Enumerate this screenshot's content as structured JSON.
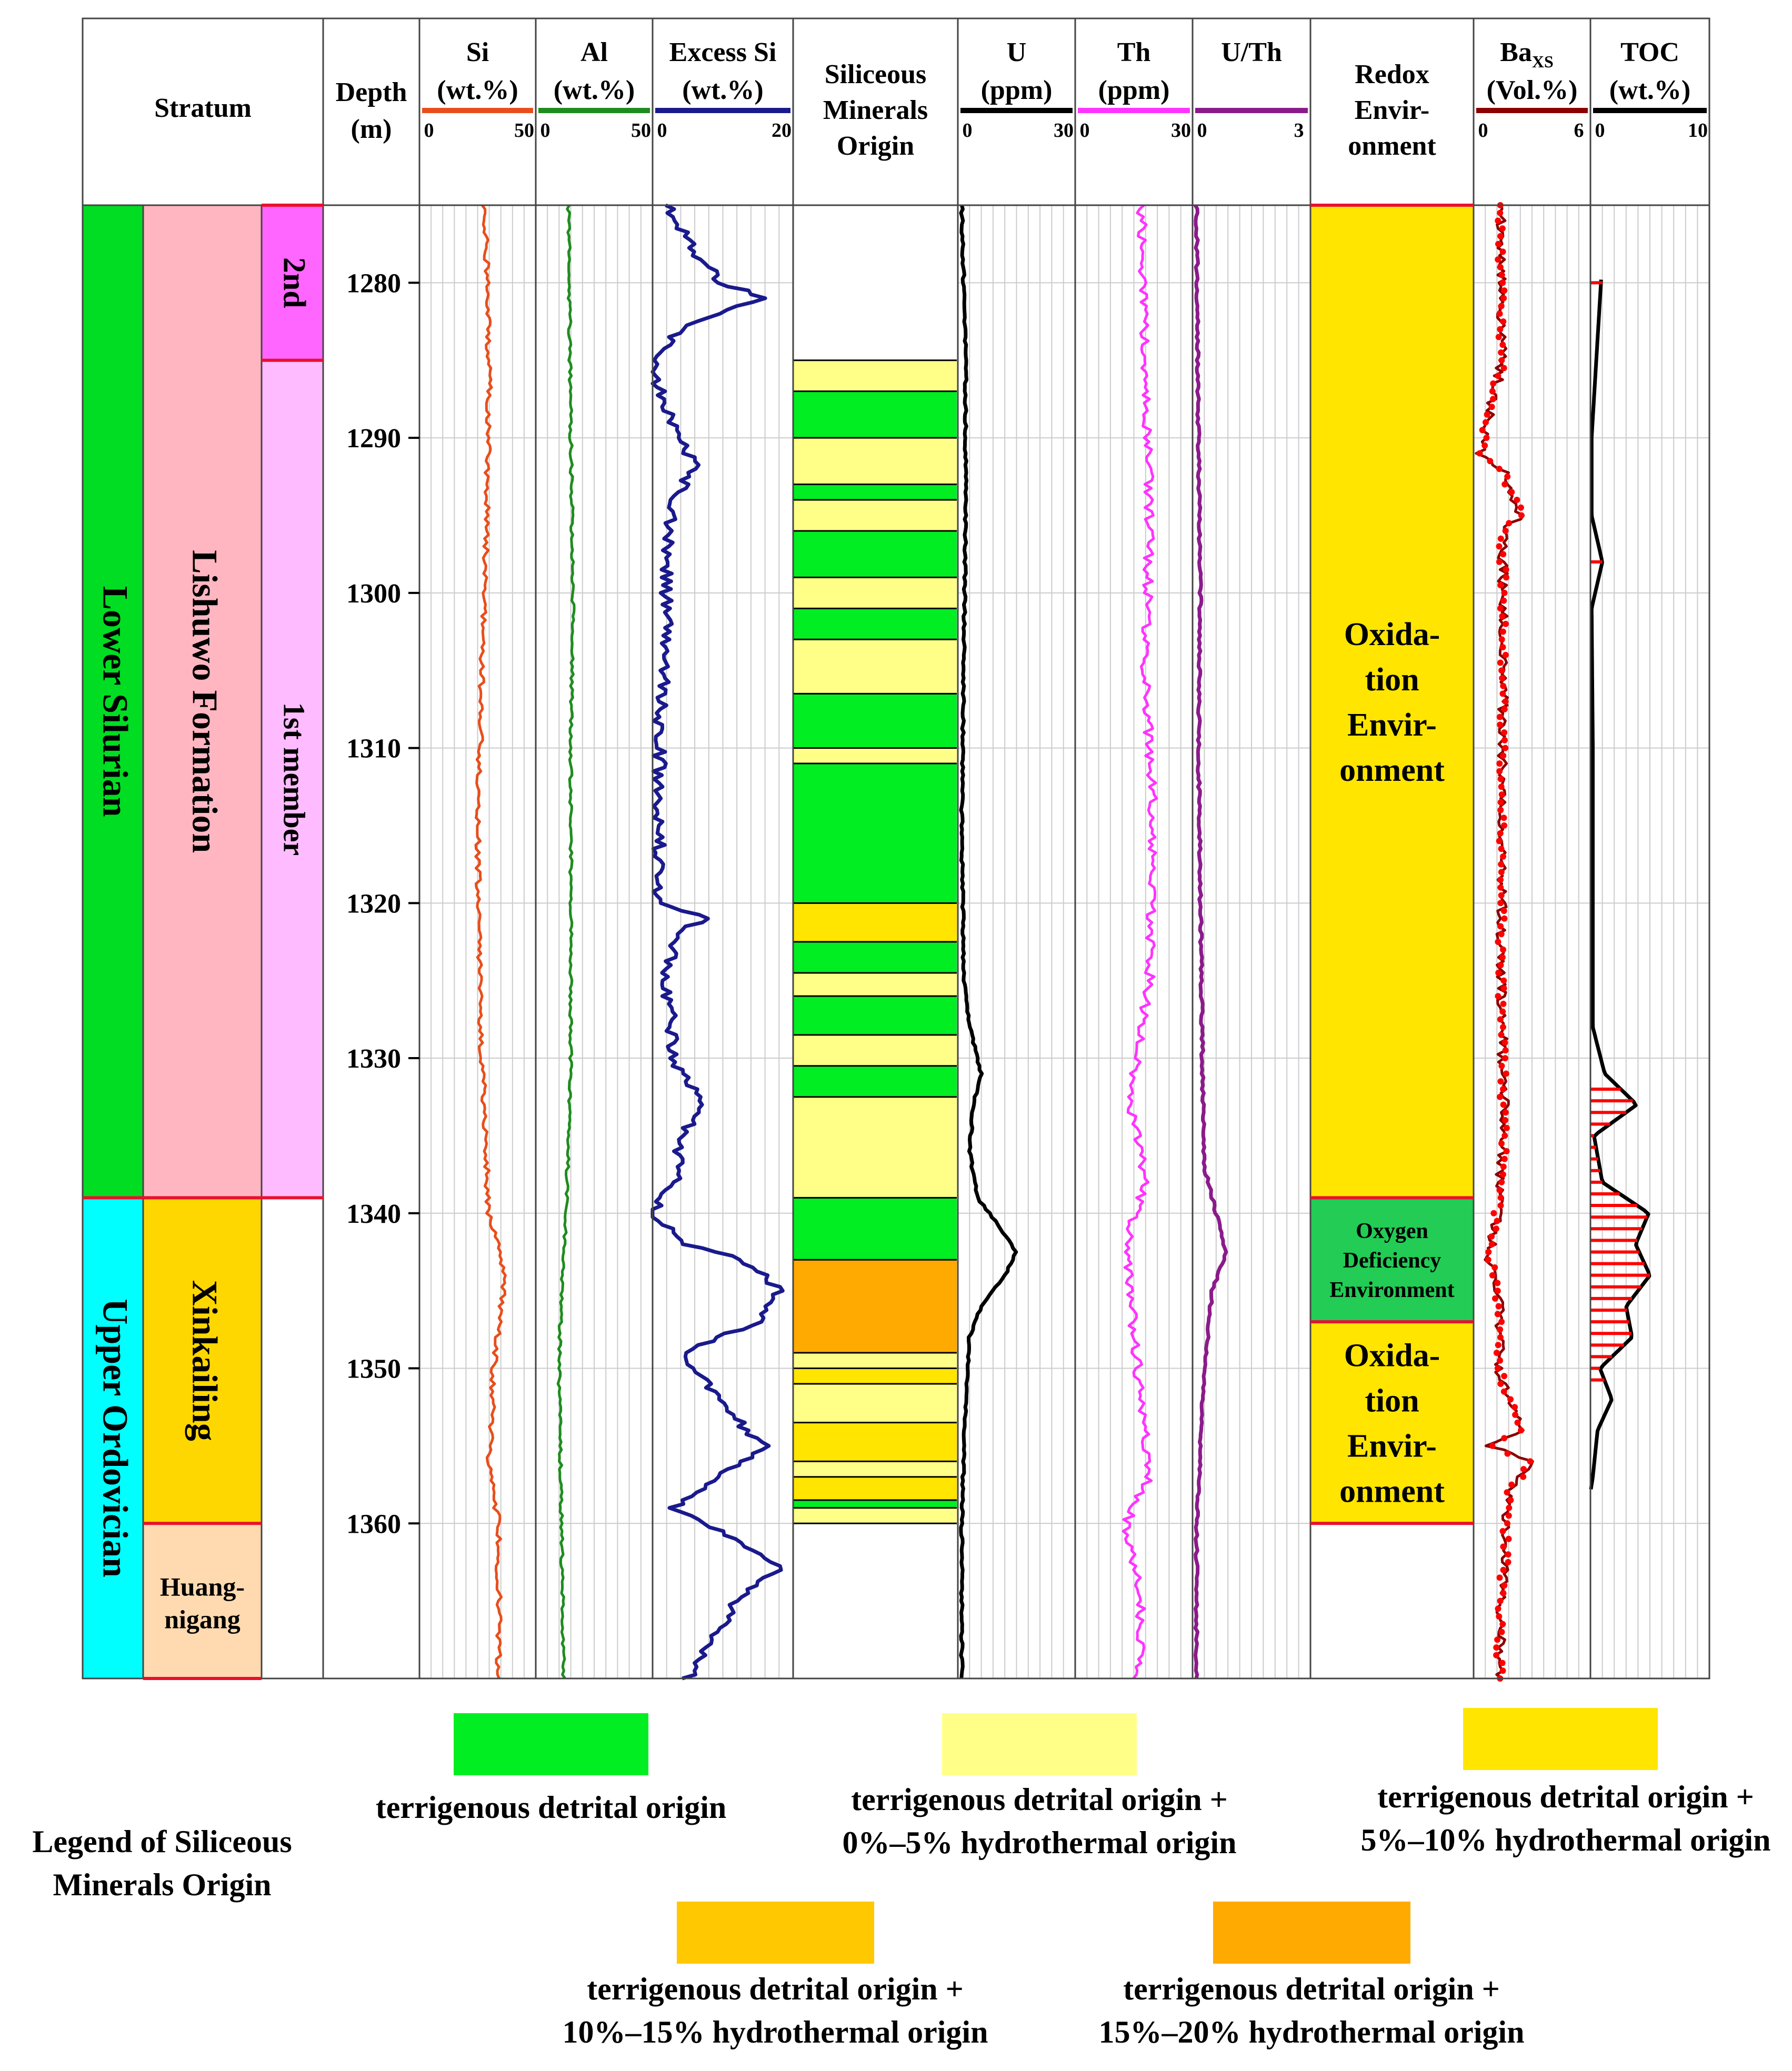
{
  "chart_data": {
    "type": "well-log",
    "depth_range": [
      1275,
      1370
    ],
    "depth_ticks": [
      "1280",
      "1290",
      "1300",
      "1310",
      "1320",
      "1330",
      "1340",
      "1350",
      "1360"
    ],
    "header": {
      "stratum": "Stratum",
      "depth": [
        "Depth",
        "(m)"
      ],
      "siliceous": [
        "Siliceous",
        "Minerals",
        "Origin"
      ],
      "redox": [
        "Redox",
        "Envir-",
        "onment"
      ]
    },
    "tracks": [
      {
        "key": "si",
        "title": "Si",
        "unit": "(wt.%)",
        "min": 0,
        "max": 50,
        "min_label": "0",
        "max_label": "50",
        "color": "#e84e1b"
      },
      {
        "key": "al",
        "title": "Al",
        "unit": "(wt.%)",
        "min": 0,
        "max": 50,
        "min_label": "0",
        "max_label": "50",
        "color": "#1e8c1e"
      },
      {
        "key": "exsi",
        "title": "Excess Si",
        "unit": "(wt.%)",
        "min": 0,
        "max": 20,
        "min_label": "0",
        "max_label": "20",
        "color": "#1a1a8c"
      },
      {
        "key": "u",
        "title": "U",
        "unit": "(ppm)",
        "min": 0,
        "max": 30,
        "min_label": "0",
        "max_label": "30",
        "color": "#000000"
      },
      {
        "key": "th",
        "title": "Th",
        "unit": "(ppm)",
        "min": 0,
        "max": 30,
        "min_label": "0",
        "max_label": "30",
        "color": "#ff33ff"
      },
      {
        "key": "uth",
        "title": "U/Th",
        "unit": "",
        "min": 0,
        "max": 3,
        "min_label": "0",
        "max_label": "3",
        "color": "#8b1a8b"
      },
      {
        "key": "ba",
        "title": "Ba",
        "title_sub": "XS",
        "unit": "(Vol.%)",
        "min": 0,
        "max": 6,
        "min_label": "0",
        "max_label": "6",
        "color": "#8b0000"
      },
      {
        "key": "toc",
        "title": "TOC",
        "unit": "(wt.%)",
        "min": 0,
        "max": 10,
        "min_label": "0",
        "max_label": "10",
        "color": "#000000"
      }
    ],
    "series_points": {
      "si": [
        [
          1275,
          28
        ],
        [
          1285,
          30
        ],
        [
          1295,
          29
        ],
        [
          1305,
          27
        ],
        [
          1315,
          25
        ],
        [
          1325,
          26
        ],
        [
          1335,
          28
        ],
        [
          1340,
          30
        ],
        [
          1344,
          37
        ],
        [
          1350,
          32
        ],
        [
          1356,
          30
        ],
        [
          1360,
          34
        ],
        [
          1370,
          34
        ]
      ],
      "al": [
        [
          1275,
          14
        ],
        [
          1290,
          15
        ],
        [
          1300,
          16
        ],
        [
          1310,
          15
        ],
        [
          1320,
          15
        ],
        [
          1330,
          15
        ],
        [
          1340,
          13
        ],
        [
          1345,
          11
        ],
        [
          1350,
          10
        ],
        [
          1360,
          11
        ],
        [
          1370,
          12
        ]
      ],
      "exsi": [
        [
          1275,
          2
        ],
        [
          1278,
          6
        ],
        [
          1280,
          10
        ],
        [
          1281,
          16
        ],
        [
          1282,
          9
        ],
        [
          1283,
          4
        ],
        [
          1284,
          2
        ],
        [
          1286,
          0
        ],
        [
          1290,
          4
        ],
        [
          1292,
          6
        ],
        [
          1294,
          3
        ],
        [
          1296,
          2
        ],
        [
          1300,
          2
        ],
        [
          1305,
          2
        ],
        [
          1308,
          1
        ],
        [
          1320,
          1
        ],
        [
          1321,
          8
        ],
        [
          1322,
          3
        ],
        [
          1325,
          2
        ],
        [
          1330,
          3
        ],
        [
          1333,
          7
        ],
        [
          1335,
          4
        ],
        [
          1338,
          3
        ],
        [
          1340,
          0
        ],
        [
          1342,
          5
        ],
        [
          1343,
          13
        ],
        [
          1345,
          18
        ],
        [
          1347,
          15
        ],
        [
          1349,
          4
        ],
        [
          1351,
          8
        ],
        [
          1353,
          11
        ],
        [
          1355,
          16
        ],
        [
          1357,
          9
        ],
        [
          1359,
          3
        ],
        [
          1361,
          12
        ],
        [
          1363,
          18
        ],
        [
          1365,
          12
        ],
        [
          1367,
          9
        ],
        [
          1370,
          5
        ]
      ],
      "u": [
        [
          1275,
          1
        ],
        [
          1285,
          2
        ],
        [
          1295,
          2
        ],
        [
          1305,
          1.5
        ],
        [
          1315,
          1
        ],
        [
          1325,
          1.5
        ],
        [
          1328,
          3
        ],
        [
          1331,
          6
        ],
        [
          1333,
          4
        ],
        [
          1336,
          3
        ],
        [
          1339,
          5
        ],
        [
          1341,
          11
        ],
        [
          1342.5,
          15
        ],
        [
          1344,
          12
        ],
        [
          1346,
          6
        ],
        [
          1348,
          3
        ],
        [
          1352,
          2
        ],
        [
          1360,
          1
        ],
        [
          1370,
          1
        ]
      ],
      "th": [
        [
          1275,
          17
        ],
        [
          1285,
          18
        ],
        [
          1295,
          19
        ],
        [
          1305,
          18
        ],
        [
          1315,
          20
        ],
        [
          1325,
          19
        ],
        [
          1333,
          14
        ],
        [
          1338,
          18
        ],
        [
          1342,
          13
        ],
        [
          1345,
          14
        ],
        [
          1350,
          16
        ],
        [
          1355,
          18
        ],
        [
          1357,
          19
        ],
        [
          1360,
          13
        ],
        [
          1365,
          17
        ],
        [
          1370,
          16
        ]
      ],
      "uth": [
        [
          1275,
          0.1
        ],
        [
          1290,
          0.15
        ],
        [
          1300,
          0.2
        ],
        [
          1310,
          0.15
        ],
        [
          1320,
          0.2
        ],
        [
          1330,
          0.25
        ],
        [
          1337,
          0.3
        ],
        [
          1340,
          0.6
        ],
        [
          1342.5,
          0.85
        ],
        [
          1345,
          0.5
        ],
        [
          1350,
          0.3
        ],
        [
          1360,
          0.1
        ],
        [
          1370,
          0.1
        ]
      ],
      "ba": [
        [
          1275,
          1.4
        ],
        [
          1285,
          1.5
        ],
        [
          1291,
          0.3
        ],
        [
          1292,
          1.5
        ],
        [
          1295,
          2.4
        ],
        [
          1296,
          1.5
        ],
        [
          1305,
          1.5
        ],
        [
          1315,
          1.5
        ],
        [
          1325,
          1.4
        ],
        [
          1335,
          1.6
        ],
        [
          1340,
          1.2
        ],
        [
          1343,
          0.8
        ],
        [
          1346,
          1.4
        ],
        [
          1350,
          1.3
        ],
        [
          1354,
          2.4
        ],
        [
          1355,
          0.8
        ],
        [
          1356,
          3.0
        ],
        [
          1358,
          1.8
        ],
        [
          1362,
          1.6
        ],
        [
          1366,
          1.4
        ],
        [
          1370,
          1.3
        ]
      ],
      "toc": [
        [
          1279.8,
          0.9
        ],
        [
          1290,
          0.1
        ],
        [
          1295,
          0.1
        ],
        [
          1298,
          1.0
        ],
        [
          1301,
          0.1
        ],
        [
          1310,
          0.2
        ],
        [
          1328,
          0.2
        ],
        [
          1331,
          1.2
        ],
        [
          1333,
          3.9
        ],
        [
          1335,
          0.3
        ],
        [
          1338,
          1.0
        ],
        [
          1340,
          4.9
        ],
        [
          1342,
          3.8
        ],
        [
          1344,
          5.0
        ],
        [
          1346,
          3.0
        ],
        [
          1348,
          3.5
        ],
        [
          1350,
          0.8
        ],
        [
          1352,
          1.8
        ],
        [
          1354,
          0.6
        ],
        [
          1357,
          0.2
        ],
        [
          1358,
          0
        ]
      ]
    },
    "siliceous_origin_intervals": [
      {
        "top": 1285,
        "bottom": 1287,
        "class": "lightyellow"
      },
      {
        "top": 1287,
        "bottom": 1290,
        "class": "green"
      },
      {
        "top": 1290,
        "bottom": 1293,
        "class": "lightyellow"
      },
      {
        "top": 1293,
        "bottom": 1294,
        "class": "green"
      },
      {
        "top": 1294,
        "bottom": 1296,
        "class": "lightyellow"
      },
      {
        "top": 1296,
        "bottom": 1299,
        "class": "green"
      },
      {
        "top": 1299,
        "bottom": 1301,
        "class": "lightyellow"
      },
      {
        "top": 1301,
        "bottom": 1303,
        "class": "green"
      },
      {
        "top": 1303,
        "bottom": 1306.5,
        "class": "lightyellow"
      },
      {
        "top": 1306.5,
        "bottom": 1310,
        "class": "green"
      },
      {
        "top": 1310,
        "bottom": 1311,
        "class": "lightyellow"
      },
      {
        "top": 1311,
        "bottom": 1320,
        "class": "green"
      },
      {
        "top": 1320,
        "bottom": 1322.5,
        "class": "yellow"
      },
      {
        "top": 1322.5,
        "bottom": 1324.5,
        "class": "green"
      },
      {
        "top": 1324.5,
        "bottom": 1326,
        "class": "lightyellow"
      },
      {
        "top": 1326,
        "bottom": 1328.5,
        "class": "green"
      },
      {
        "top": 1328.5,
        "bottom": 1330.5,
        "class": "lightyellow"
      },
      {
        "top": 1330.5,
        "bottom": 1332.5,
        "class": "green"
      },
      {
        "top": 1332.5,
        "bottom": 1339,
        "class": "lightyellow"
      },
      {
        "top": 1339,
        "bottom": 1343,
        "class": "green"
      },
      {
        "top": 1343,
        "bottom": 1349,
        "class": "orange"
      },
      {
        "top": 1349,
        "bottom": 1350,
        "class": "lightyellow"
      },
      {
        "top": 1350,
        "bottom": 1351,
        "class": "yellow"
      },
      {
        "top": 1351,
        "bottom": 1353.5,
        "class": "lightyellow"
      },
      {
        "top": 1353.5,
        "bottom": 1356,
        "class": "yellow"
      },
      {
        "top": 1356,
        "bottom": 1357,
        "class": "lightyellow"
      },
      {
        "top": 1357,
        "bottom": 1358.5,
        "class": "yellow"
      },
      {
        "top": 1358.5,
        "bottom": 1359,
        "class": "green"
      },
      {
        "top": 1359,
        "bottom": 1360,
        "class": "lightyellow"
      }
    ],
    "origin_colors": {
      "green": "#00ee22",
      "lightyellow": "#ffff88",
      "yellow": "#ffe500",
      "gold": "#ffc800",
      "orange": "#ffaa00"
    },
    "stratum": {
      "series": [
        {
          "label": "Lower Silurian",
          "top": 1275,
          "bottom": 1339,
          "color": "#00dd22"
        },
        {
          "label": "Upper Ordovician",
          "top": 1339,
          "bottom": 1370,
          "color": "#00ffff"
        }
      ],
      "formations": [
        {
          "label": "Lishuwo Formation",
          "top": 1275,
          "bottom": 1339,
          "color": "#ffb6c1"
        },
        {
          "label": "Xinkailing",
          "top": 1339,
          "bottom": 1360,
          "color": "#ffd700"
        },
        {
          "label": "Huang-",
          "label2": "nigang",
          "top": 1360,
          "bottom": 1370,
          "color": "#ffdab0"
        }
      ],
      "members": [
        {
          "label": "2nd",
          "top": 1275,
          "bottom": 1285,
          "color": "#ff66ff"
        },
        {
          "label": "1st member",
          "top": 1285,
          "bottom": 1339,
          "color": "#ffbbff"
        }
      ]
    },
    "redox": [
      {
        "lines": [
          "Oxida-",
          "tion",
          "Envir-",
          "onment"
        ],
        "top": 1275,
        "bottom": 1339,
        "color": "#ffe500"
      },
      {
        "lines": [
          "Oxygen",
          "Deficiency",
          "Environment"
        ],
        "top": 1339,
        "bottom": 1347,
        "color": "#22cc55"
      },
      {
        "lines": [
          "Oxida-",
          "tion",
          "Envir-",
          "onment"
        ],
        "top": 1347,
        "bottom": 1360,
        "color": "#ffe500"
      }
    ],
    "legend": {
      "title": [
        "Legend of Siliceous",
        "Minerals Origin"
      ],
      "items": [
        {
          "class": "green",
          "lines": [
            "terrigenous detrital origin"
          ]
        },
        {
          "class": "lightyellow",
          "lines": [
            "terrigenous detrital origin +",
            "0%–5% hydrothermal origin"
          ]
        },
        {
          "class": "yellow",
          "lines": [
            "terrigenous detrital origin +",
            "5%–10% hydrothermal origin"
          ]
        },
        {
          "class": "gold",
          "lines": [
            "terrigenous detrital origin +",
            "10%–15% hydrothermal origin"
          ]
        },
        {
          "class": "orange",
          "lines": [
            "terrigenous detrital origin +",
            "15%–20% hydrothermal origin"
          ]
        }
      ]
    }
  }
}
